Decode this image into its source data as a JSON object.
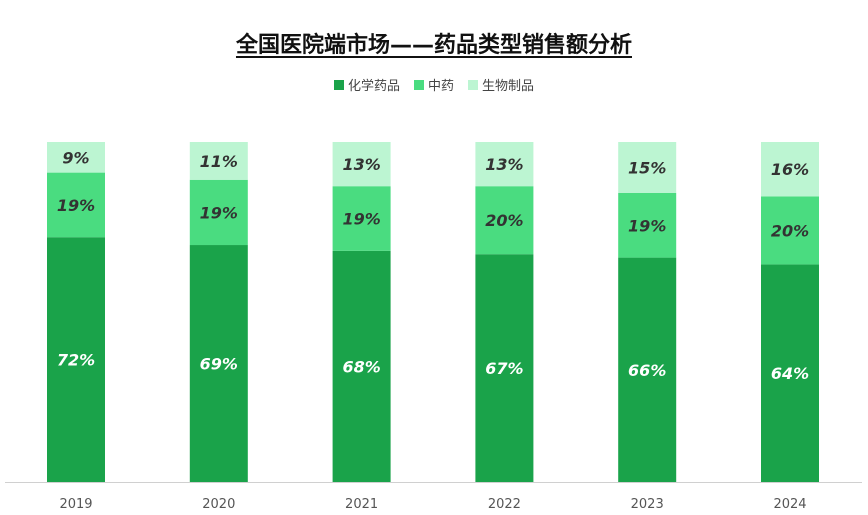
{
  "chart_data": {
    "type": "bar",
    "stacked": "percent",
    "title": "全国医院端市场——药品类型销售额分析",
    "categories": [
      "2019",
      "2020",
      "2021",
      "2022",
      "2023",
      "2024"
    ],
    "series": [
      {
        "name": "化学药品",
        "color": "#1aa34a",
        "values": [
          72,
          69,
          68,
          67,
          66,
          64
        ],
        "labels": [
          "72%",
          "69%",
          "68%",
          "67%",
          "66%",
          "64%"
        ],
        "label_color": "#ffffff"
      },
      {
        "name": "中药",
        "color": "#4adc80",
        "values": [
          19,
          19,
          19,
          20,
          19,
          20
        ],
        "labels": [
          "19%",
          "19%",
          "19%",
          "20%",
          "19%",
          "20%"
        ],
        "label_color": "#333333"
      },
      {
        "name": "生物制品",
        "color": "#bcf5d2",
        "values": [
          9,
          11,
          13,
          13,
          15,
          16
        ],
        "labels": [
          "9%",
          "11%",
          "13%",
          "13%",
          "15%",
          "16%"
        ],
        "label_color": "#333333"
      }
    ],
    "legend": "top",
    "grid": false,
    "xlabel": "",
    "ylabel": ""
  }
}
